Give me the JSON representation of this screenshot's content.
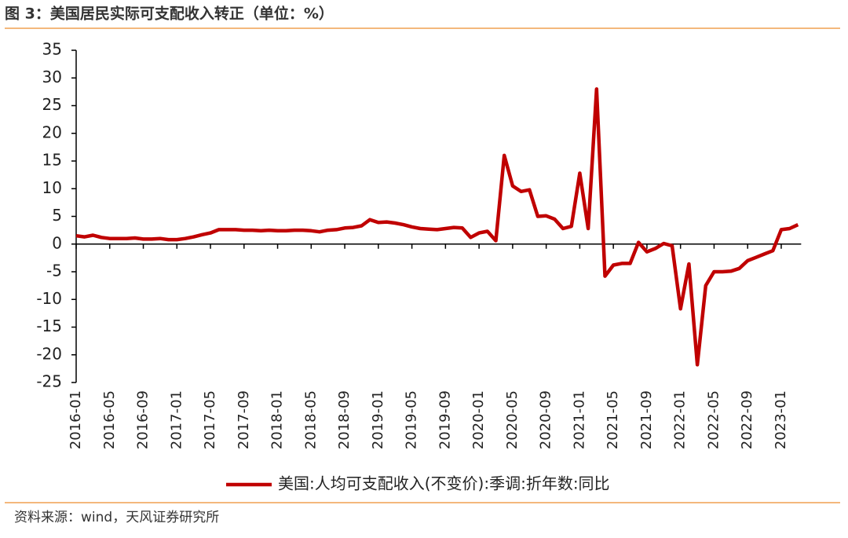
{
  "chart_data": {
    "type": "line",
    "title": "图 3：美国居民实际可支配收入转正（单位：%）",
    "source": "资料来源：wind，天风证券研究所",
    "categories": [
      "2016-01",
      null,
      null,
      null,
      "2016-05",
      null,
      null,
      null,
      "2016-09",
      null,
      null,
      null,
      "2017-01",
      null,
      null,
      null,
      "2017-05",
      null,
      null,
      null,
      "2017-09",
      null,
      null,
      null,
      "2018-01",
      null,
      null,
      null,
      "2018-05",
      null,
      null,
      null,
      "2018-09",
      null,
      null,
      null,
      "2019-01",
      null,
      null,
      null,
      "2019-05",
      null,
      null,
      null,
      "2019-09",
      null,
      null,
      null,
      "2020-01",
      null,
      null,
      null,
      "2020-05",
      null,
      null,
      null,
      "2020-09",
      null,
      null,
      null,
      "2021-01",
      null,
      null,
      null,
      "2021-05",
      null,
      null,
      null,
      "2021-09",
      null,
      null,
      null,
      "2022-01",
      null,
      null,
      null,
      "2022-05",
      null,
      null,
      null,
      "2022-09",
      null,
      null,
      null,
      "2023-01",
      null,
      null
    ],
    "series": [
      {
        "name": "美国:人均可支配收入(不变价):季调:折年数:同比",
        "color": "#c00000",
        "values": [
          1.5,
          1.3,
          1.6,
          1.2,
          1.0,
          1.0,
          1.0,
          1.1,
          0.9,
          0.9,
          1.0,
          0.8,
          0.8,
          1.0,
          1.3,
          1.7,
          2.0,
          2.6,
          2.6,
          2.6,
          2.5,
          2.5,
          2.4,
          2.5,
          2.4,
          2.4,
          2.5,
          2.5,
          2.4,
          2.2,
          2.5,
          2.6,
          2.9,
          3.0,
          3.3,
          4.4,
          3.9,
          4.0,
          3.8,
          3.5,
          3.1,
          2.8,
          2.7,
          2.6,
          2.8,
          3.0,
          2.9,
          1.2,
          2.0,
          2.3,
          0.6,
          16.0,
          10.5,
          9.5,
          9.8,
          5.0,
          5.1,
          4.5,
          2.8,
          3.2,
          12.8,
          2.8,
          28.0,
          -5.8,
          -3.8,
          -3.5,
          -3.5,
          0.3,
          -1.4,
          -0.8,
          0.1,
          -0.3,
          -11.7,
          -3.6,
          -21.8,
          -7.5,
          -5.0,
          -5.0,
          -4.9,
          -4.4,
          -3.0,
          -2.4,
          -1.8,
          -1.2,
          2.6,
          2.8,
          3.5
        ]
      }
    ],
    "ylim": [
      -25,
      35
    ],
    "yticks": [
      -25,
      -20,
      -15,
      -10,
      -5,
      0,
      5,
      10,
      15,
      20,
      25,
      30,
      35
    ],
    "legend": "bottom"
  }
}
